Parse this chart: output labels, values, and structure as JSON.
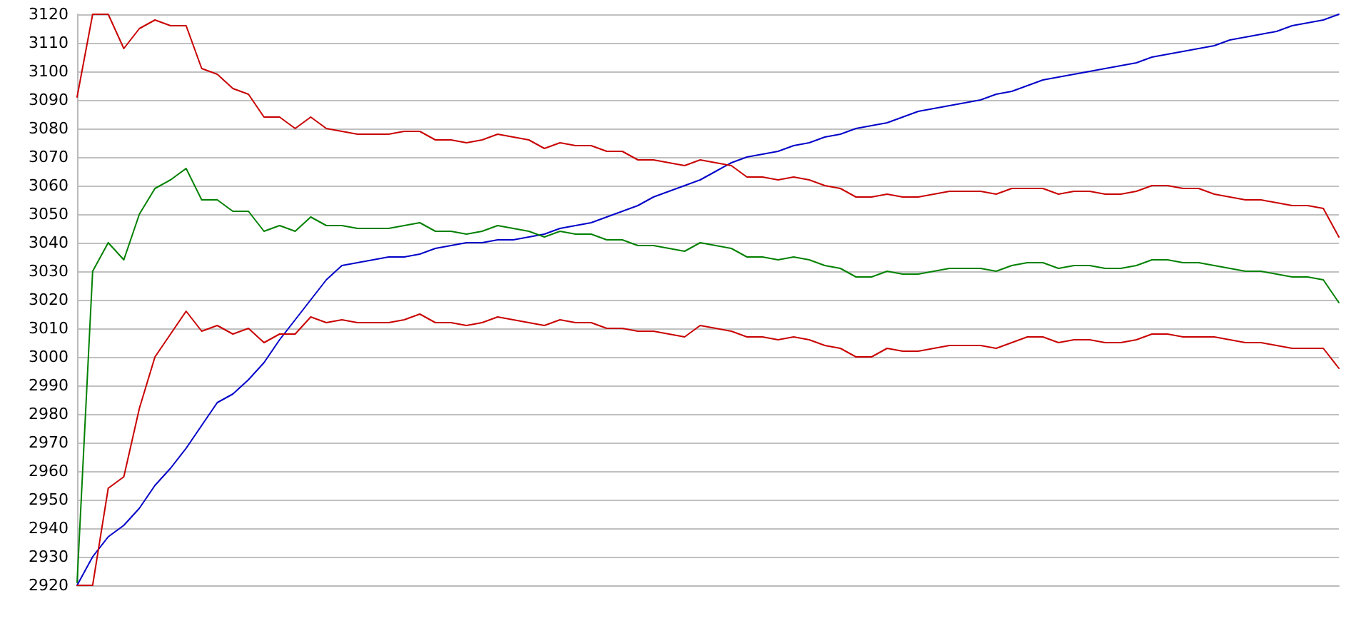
{
  "chart_data": {
    "type": "line",
    "categories": [
      null,
      null,
      null,
      null,
      null,
      null,
      null,
      null,
      null,
      null,
      null,
      null,
      null,
      null,
      null,
      null,
      null,
      null,
      null,
      null,
      null,
      null,
      null,
      null,
      null,
      null,
      null,
      null,
      null,
      null,
      null,
      null,
      null,
      null,
      null,
      null,
      null,
      null,
      null,
      null,
      null,
      null,
      null,
      null,
      null,
      null,
      null,
      null,
      null,
      null,
      null,
      null,
      null,
      null,
      null,
      null,
      null,
      null,
      null,
      null,
      null,
      null,
      null,
      null,
      null,
      null,
      null,
      null,
      null,
      null,
      null,
      null,
      null,
      null,
      null,
      null,
      null,
      null,
      null,
      null,
      null,
      null
    ],
    "series": [
      {
        "color": "#0000c8",
        "values": [
          2920,
          2930,
          2937,
          2941,
          2947,
          2955,
          2961,
          2968,
          2976,
          2984,
          2987,
          2992,
          2998,
          3006,
          3013,
          3020,
          3027,
          3032,
          3033,
          3034,
          3035,
          3035,
          3036,
          3038,
          3039,
          3040,
          3040,
          3041,
          3041,
          3042,
          3043,
          3045,
          3046,
          3047,
          3049,
          3051,
          3053,
          3056,
          3058,
          3060,
          3062,
          3065,
          3068,
          3070,
          3071,
          3072,
          3074,
          3075,
          3077,
          3078,
          3080,
          3081,
          3082,
          3084,
          3086,
          3087,
          3088,
          3089,
          3090,
          3092,
          3093,
          3095,
          3097,
          3098,
          3099,
          3100,
          3101,
          3102,
          3103,
          3105,
          3106,
          3107,
          3108,
          3109,
          3111,
          3112,
          3113,
          3114,
          3116,
          3117,
          3118,
          3120
        ]
      },
      {
        "color": "#c80000",
        "values": [
          3091,
          3120,
          3120,
          3108,
          3115,
          3118,
          3116,
          3116,
          3101,
          3099,
          3094,
          3092,
          3084,
          3084,
          3080,
          3084,
          3080,
          3079,
          3078,
          3078,
          3078,
          3079,
          3079,
          3076,
          3076,
          3075,
          3076,
          3078,
          3077,
          3076,
          3073,
          3075,
          3074,
          3074,
          3072,
          3072,
          3069,
          3069,
          3068,
          3067,
          3069,
          3068,
          3067,
          3063,
          3063,
          3062,
          3063,
          3062,
          3060,
          3059,
          3056,
          3056,
          3057,
          3056,
          3056,
          3057,
          3058,
          3058,
          3058,
          3057,
          3059,
          3059,
          3059,
          3057,
          3058,
          3058,
          3057,
          3057,
          3058,
          3060,
          3060,
          3059,
          3059,
          3057,
          3056,
          3055,
          3055,
          3054,
          3053,
          3053,
          3052,
          3042
        ]
      },
      {
        "color": "#008000",
        "values": [
          2921,
          3030,
          3040,
          3034,
          3050,
          3059,
          3062,
          3066,
          3055,
          3055,
          3051,
          3051,
          3044,
          3046,
          3044,
          3049,
          3046,
          3046,
          3045,
          3045,
          3045,
          3046,
          3047,
          3044,
          3044,
          3043,
          3044,
          3046,
          3045,
          3044,
          3042,
          3044,
          3043,
          3043,
          3041,
          3041,
          3039,
          3039,
          3038,
          3037,
          3040,
          3039,
          3038,
          3035,
          3035,
          3034,
          3035,
          3034,
          3032,
          3031,
          3028,
          3028,
          3030,
          3029,
          3029,
          3030,
          3031,
          3031,
          3031,
          3030,
          3032,
          3033,
          3033,
          3031,
          3032,
          3032,
          3031,
          3031,
          3032,
          3034,
          3034,
          3033,
          3033,
          3032,
          3031,
          3030,
          3030,
          3029,
          3028,
          3028,
          3027,
          3019
        ]
      },
      {
        "color": "#c80000",
        "values": [
          2920,
          2920,
          2954,
          2958,
          2982,
          3000,
          3008,
          3016,
          3009,
          3011,
          3008,
          3010,
          3005,
          3008,
          3008,
          3014,
          3012,
          3013,
          3012,
          3012,
          3012,
          3013,
          3015,
          3012,
          3012,
          3011,
          3012,
          3014,
          3013,
          3012,
          3011,
          3013,
          3012,
          3012,
          3010,
          3010,
          3009,
          3009,
          3008,
          3007,
          3011,
          3010,
          3009,
          3007,
          3007,
          3006,
          3007,
          3006,
          3004,
          3003,
          3000,
          3000,
          3003,
          3002,
          3002,
          3003,
          3004,
          3004,
          3004,
          3003,
          3005,
          3007,
          3007,
          3005,
          3006,
          3006,
          3005,
          3005,
          3006,
          3008,
          3008,
          3007,
          3007,
          3007,
          3006,
          3005,
          3005,
          3004,
          3003,
          3003,
          3003,
          2996
        ]
      }
    ],
    "ylim": [
      2920,
      3120
    ],
    "yticks": [
      2920,
      2930,
      2940,
      2950,
      2960,
      2970,
      2980,
      2990,
      3000,
      3010,
      3020,
      3030,
      3040,
      3050,
      3060,
      3070,
      3080,
      3090,
      3100,
      3110,
      3120
    ],
    "grid": "y",
    "tick_labels": "y",
    "marker": "none",
    "line_style": "solid"
  }
}
